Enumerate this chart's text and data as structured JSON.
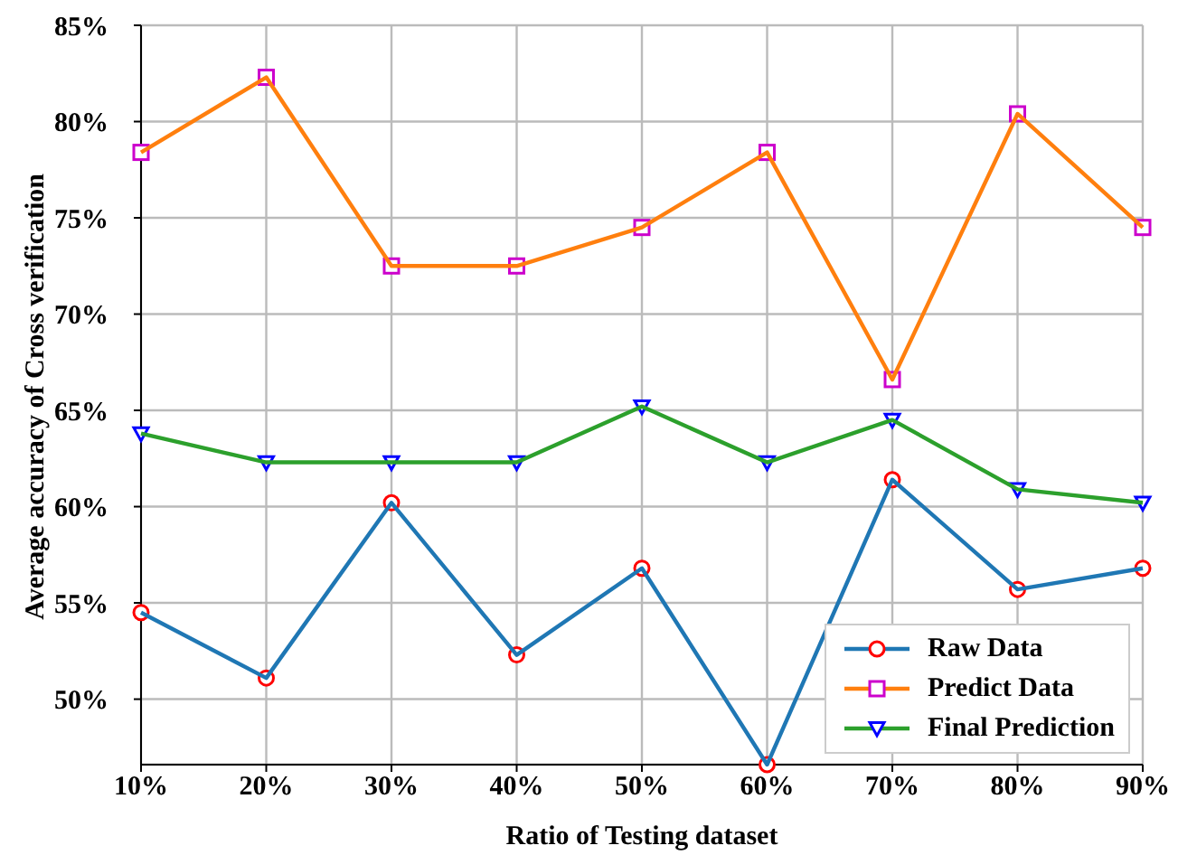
{
  "chart_data": {
    "type": "line",
    "xlabel": "Ratio of Testing dataset",
    "ylabel": "Average accuracy of Cross verification",
    "x": [
      10,
      20,
      30,
      40,
      50,
      60,
      70,
      80,
      90
    ],
    "xlim": [
      10,
      90
    ],
    "xticks": [
      {
        "value": 10,
        "label": "10%"
      },
      {
        "value": 20,
        "label": "20%"
      },
      {
        "value": 30,
        "label": "30%"
      },
      {
        "value": 40,
        "label": "40%"
      },
      {
        "value": 50,
        "label": "50%"
      },
      {
        "value": 60,
        "label": "60%"
      },
      {
        "value": 70,
        "label": "70%"
      },
      {
        "value": 80,
        "label": "80%"
      },
      {
        "value": 90,
        "label": "90%"
      }
    ],
    "ylim": [
      46.6,
      85
    ],
    "yticks": [
      {
        "value": 50,
        "label": "50%"
      },
      {
        "value": 55,
        "label": "55%"
      },
      {
        "value": 60,
        "label": "60%"
      },
      {
        "value": 65,
        "label": "65%"
      },
      {
        "value": 70,
        "label": "70%"
      },
      {
        "value": 75,
        "label": "75%"
      },
      {
        "value": 80,
        "label": "80%"
      },
      {
        "value": 85,
        "label": "85%"
      }
    ],
    "grid": true,
    "legend": "bottom right",
    "line_style": "solid",
    "series": [
      {
        "name": "Raw Data",
        "color": "#1f77b4",
        "marker": "circle",
        "colors": [
          "#ff0000",
          "#ff0000",
          "#ff0000",
          "#ff0000",
          "#ff0000",
          "#ff0000",
          "#ff0000",
          "#ff0000",
          "#ff0000"
        ],
        "values": [
          54.5,
          51.1,
          60.2,
          52.3,
          56.8,
          46.6,
          61.4,
          55.7,
          56.8
        ]
      },
      {
        "name": "Predict Data",
        "color": "#ff7f0e",
        "marker": "square",
        "colors": [
          "#cc00cc",
          "#cc00cc",
          "#cc00cc",
          "#cc00cc",
          "#cc00cc",
          "#cc00cc",
          "#cc00cc",
          "#cc00cc",
          "#cc00cc"
        ],
        "values": [
          78.4,
          82.3,
          72.5,
          72.5,
          74.5,
          78.4,
          66.6,
          80.4,
          74.5
        ]
      },
      {
        "name": "Final Prediction",
        "color": "#2ca02c",
        "marker": "triangle",
        "colors": [
          "#0000ff",
          "#0000ff",
          "#0000ff",
          "#0000ff",
          "#0000ff",
          "#0000ff",
          "#0000ff",
          "#0000ff",
          "#0000ff"
        ],
        "values": [
          63.8,
          62.3,
          62.3,
          62.3,
          65.2,
          62.3,
          64.5,
          60.9,
          60.2
        ]
      }
    ]
  }
}
